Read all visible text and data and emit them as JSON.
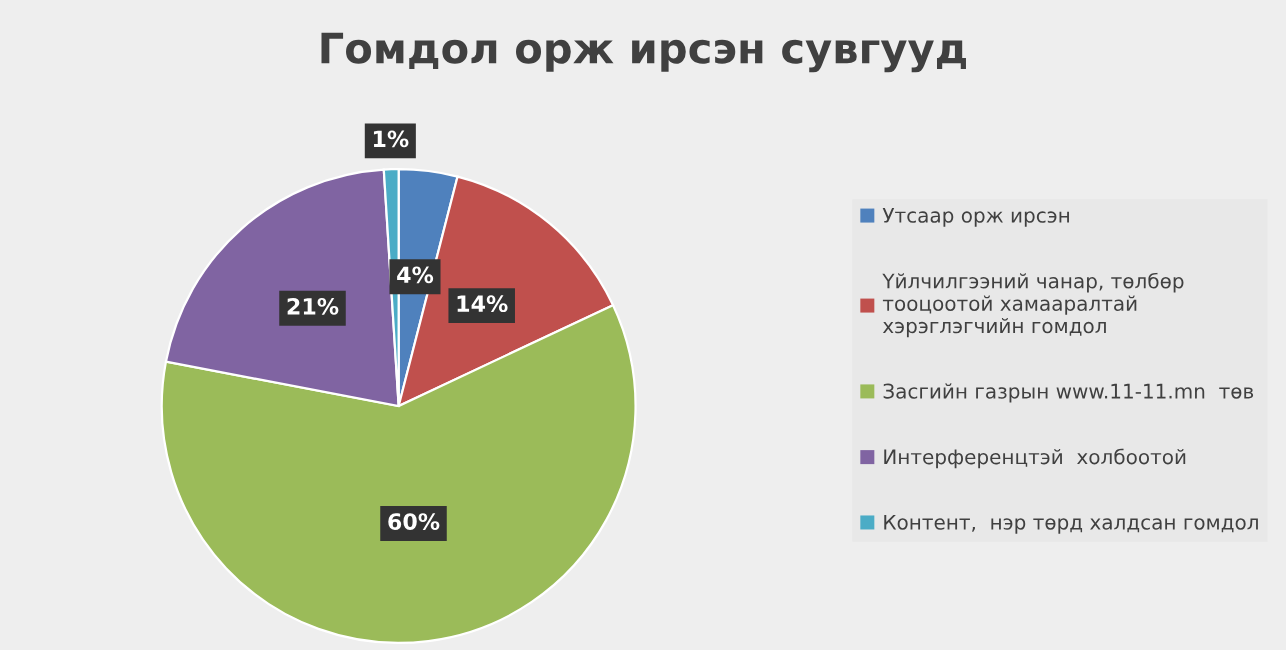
{
  "chart_data": {
    "type": "pie",
    "title": "Гомдол орж ирсэн сувгууд",
    "categories": [
      "Утсаар орж ирсэн",
      "Үйлчилгээний чанар, төлбөр тооцоотой хамааралтай хэрэглэгчийн гомдол",
      "Засгийн газрын www.11-11.mn  төв",
      "Интерференцтэй  холбоотой",
      "Контент,  нэр төрд халдсан гомдол"
    ],
    "values": [
      4,
      14,
      60,
      21,
      1
    ],
    "colors": [
      "#4f81bd",
      "#c0504d",
      "#9bbb59",
      "#8064a2",
      "#4bacc6"
    ],
    "value_labels": [
      "4%",
      "14%",
      "60%",
      "21%",
      "1%"
    ],
    "legend": "right"
  }
}
